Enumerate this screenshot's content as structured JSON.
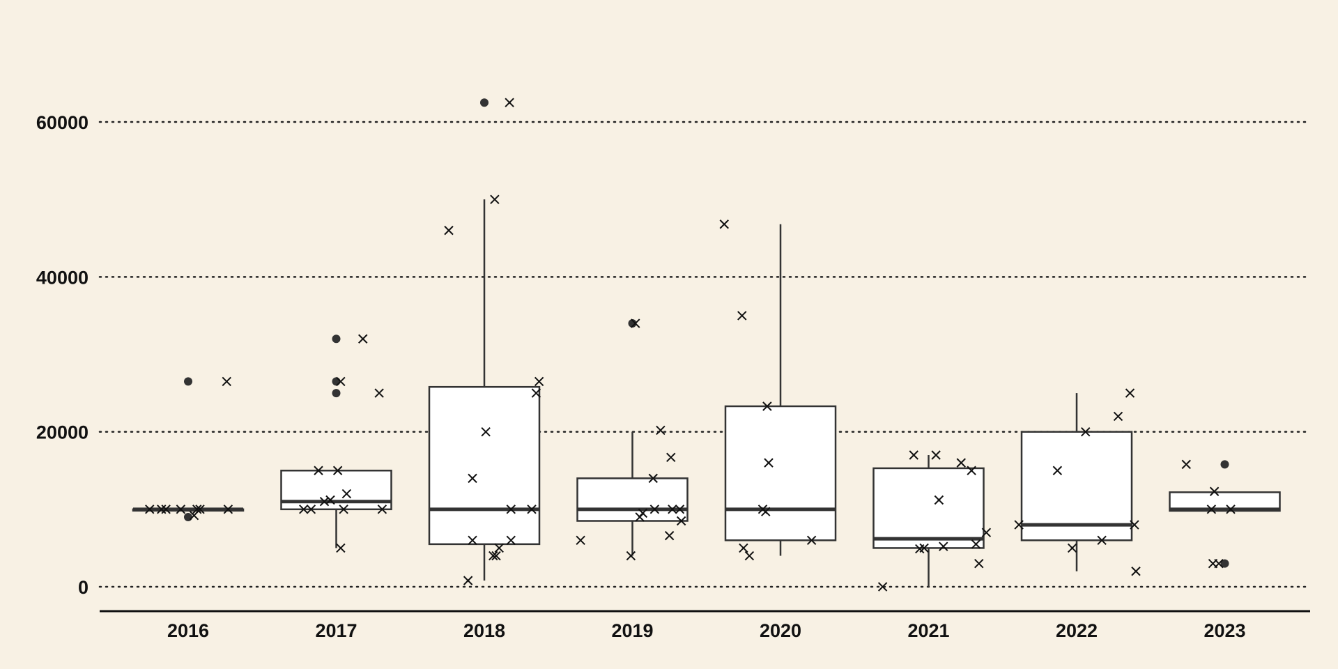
{
  "chart_data": {
    "type": "boxplot",
    "title": "",
    "xlabel": "",
    "ylabel": "",
    "ylim": [
      -3000,
      72000
    ],
    "yticks": [
      0,
      20000,
      40000,
      60000
    ],
    "grid": "horizontal dotted",
    "colors": {
      "background": "#f8f1e4",
      "box_fill": "#ffffff",
      "stroke": "#333333",
      "points": "#111111"
    },
    "categories": [
      "2016",
      "2017",
      "2018",
      "2019",
      "2020",
      "2021",
      "2022",
      "2023"
    ],
    "boxes": [
      {
        "category": "2016",
        "q1": 10000,
        "median": 10000,
        "q3": 10000,
        "whisker_low": 10000,
        "whisker_high": 10000,
        "outliers": [
          26500,
          9000
        ]
      },
      {
        "category": "2017",
        "q1": 10000,
        "median": 11000,
        "q3": 15000,
        "whisker_low": 5000,
        "whisker_high": 15000,
        "outliers": [
          32000,
          26500,
          25000
        ]
      },
      {
        "category": "2018",
        "q1": 5500,
        "median": 10000,
        "q3": 25800,
        "whisker_low": 800,
        "whisker_high": 50000,
        "outliers": [
          62500
        ]
      },
      {
        "category": "2019",
        "q1": 8500,
        "median": 10000,
        "q3": 14000,
        "whisker_low": 4000,
        "whisker_high": 20000,
        "outliers": [
          34000
        ]
      },
      {
        "category": "2020",
        "q1": 6000,
        "median": 10000,
        "q3": 23300,
        "whisker_low": 4000,
        "whisker_high": 46800,
        "outliers": []
      },
      {
        "category": "2021",
        "q1": 5000,
        "median": 6200,
        "q3": 15300,
        "whisker_low": 0,
        "whisker_high": 17000,
        "outliers": []
      },
      {
        "category": "2022",
        "q1": 6000,
        "median": 8000,
        "q3": 20000,
        "whisker_low": 2000,
        "whisker_high": 25000,
        "outliers": []
      },
      {
        "category": "2023",
        "q1": 9800,
        "median": 10000,
        "q3": 12200,
        "whisker_low": 9800,
        "whisker_high": 12200,
        "outliers": [
          15800,
          3000
        ]
      }
    ],
    "jitter_points": [
      {
        "x": 0.74,
        "y": 10000
      },
      {
        "x": 0.82,
        "y": 10000
      },
      {
        "x": 0.85,
        "y": 10000
      },
      {
        "x": 0.95,
        "y": 10000
      },
      {
        "x": 1.04,
        "y": 9200
      },
      {
        "x": 1.06,
        "y": 10000
      },
      {
        "x": 1.08,
        "y": 10000
      },
      {
        "x": 1.27,
        "y": 10000
      },
      {
        "x": 1.26,
        "y": 26500
      },
      {
        "x": 1.78,
        "y": 10000
      },
      {
        "x": 1.83,
        "y": 10000
      },
      {
        "x": 1.88,
        "y": 15000
      },
      {
        "x": 1.92,
        "y": 11000
      },
      {
        "x": 1.96,
        "y": 11200
      },
      {
        "x": 2.01,
        "y": 15000
      },
      {
        "x": 2.07,
        "y": 12000
      },
      {
        "x": 2.03,
        "y": 26500
      },
      {
        "x": 2.03,
        "y": 5000
      },
      {
        "x": 2.05,
        "y": 10000
      },
      {
        "x": 2.18,
        "y": 32000
      },
      {
        "x": 2.29,
        "y": 25000
      },
      {
        "x": 2.31,
        "y": 10000
      },
      {
        "x": 2.76,
        "y": 46000
      },
      {
        "x": 2.89,
        "y": 800
      },
      {
        "x": 2.92,
        "y": 6000
      },
      {
        "x": 2.92,
        "y": 14000
      },
      {
        "x": 3.01,
        "y": 20000
      },
      {
        "x": 3.06,
        "y": 4000
      },
      {
        "x": 3.08,
        "y": 4000
      },
      {
        "x": 3.1,
        "y": 5000
      },
      {
        "x": 3.07,
        "y": 50000
      },
      {
        "x": 3.17,
        "y": 62500
      },
      {
        "x": 3.18,
        "y": 6000
      },
      {
        "x": 3.18,
        "y": 10000
      },
      {
        "x": 3.32,
        "y": 10000
      },
      {
        "x": 3.35,
        "y": 25000
      },
      {
        "x": 3.37,
        "y": 26500
      },
      {
        "x": 3.65,
        "y": 6000
      },
      {
        "x": 3.99,
        "y": 4000
      },
      {
        "x": 4.02,
        "y": 34000
      },
      {
        "x": 4.05,
        "y": 9000
      },
      {
        "x": 4.07,
        "y": 9500
      },
      {
        "x": 4.14,
        "y": 14000
      },
      {
        "x": 4.15,
        "y": 10000
      },
      {
        "x": 4.19,
        "y": 20200
      },
      {
        "x": 4.25,
        "y": 6600
      },
      {
        "x": 4.26,
        "y": 16700
      },
      {
        "x": 4.27,
        "y": 10000
      },
      {
        "x": 4.32,
        "y": 10000
      },
      {
        "x": 4.33,
        "y": 8500
      },
      {
        "x": 4.62,
        "y": 46800
      },
      {
        "x": 4.74,
        "y": 35000
      },
      {
        "x": 4.75,
        "y": 5000
      },
      {
        "x": 4.79,
        "y": 4000
      },
      {
        "x": 4.88,
        "y": 10000
      },
      {
        "x": 4.9,
        "y": 9700
      },
      {
        "x": 4.91,
        "y": 23300
      },
      {
        "x": 4.92,
        "y": 16000
      },
      {
        "x": 5.21,
        "y": 6000
      },
      {
        "x": 5.69,
        "y": 0
      },
      {
        "x": 5.9,
        "y": 17000
      },
      {
        "x": 5.94,
        "y": 4900
      },
      {
        "x": 5.97,
        "y": 5000
      },
      {
        "x": 6.05,
        "y": 17000
      },
      {
        "x": 6.07,
        "y": 11200
      },
      {
        "x": 6.1,
        "y": 5200
      },
      {
        "x": 6.22,
        "y": 16000
      },
      {
        "x": 6.29,
        "y": 15000
      },
      {
        "x": 6.32,
        "y": 5500
      },
      {
        "x": 6.34,
        "y": 3000
      },
      {
        "x": 6.39,
        "y": 7000
      },
      {
        "x": 6.61,
        "y": 8000
      },
      {
        "x": 6.87,
        "y": 15000
      },
      {
        "x": 6.97,
        "y": 5000
      },
      {
        "x": 7.06,
        "y": 20000
      },
      {
        "x": 7.17,
        "y": 6000
      },
      {
        "x": 7.28,
        "y": 22000
      },
      {
        "x": 7.36,
        "y": 25000
      },
      {
        "x": 7.39,
        "y": 8000
      },
      {
        "x": 7.4,
        "y": 2000
      },
      {
        "x": 7.74,
        "y": 15800
      },
      {
        "x": 7.91,
        "y": 10000
      },
      {
        "x": 7.92,
        "y": 3000
      },
      {
        "x": 7.93,
        "y": 12300
      },
      {
        "x": 8.04,
        "y": 10000
      },
      {
        "x": 7.96,
        "y": 3000
      }
    ]
  }
}
